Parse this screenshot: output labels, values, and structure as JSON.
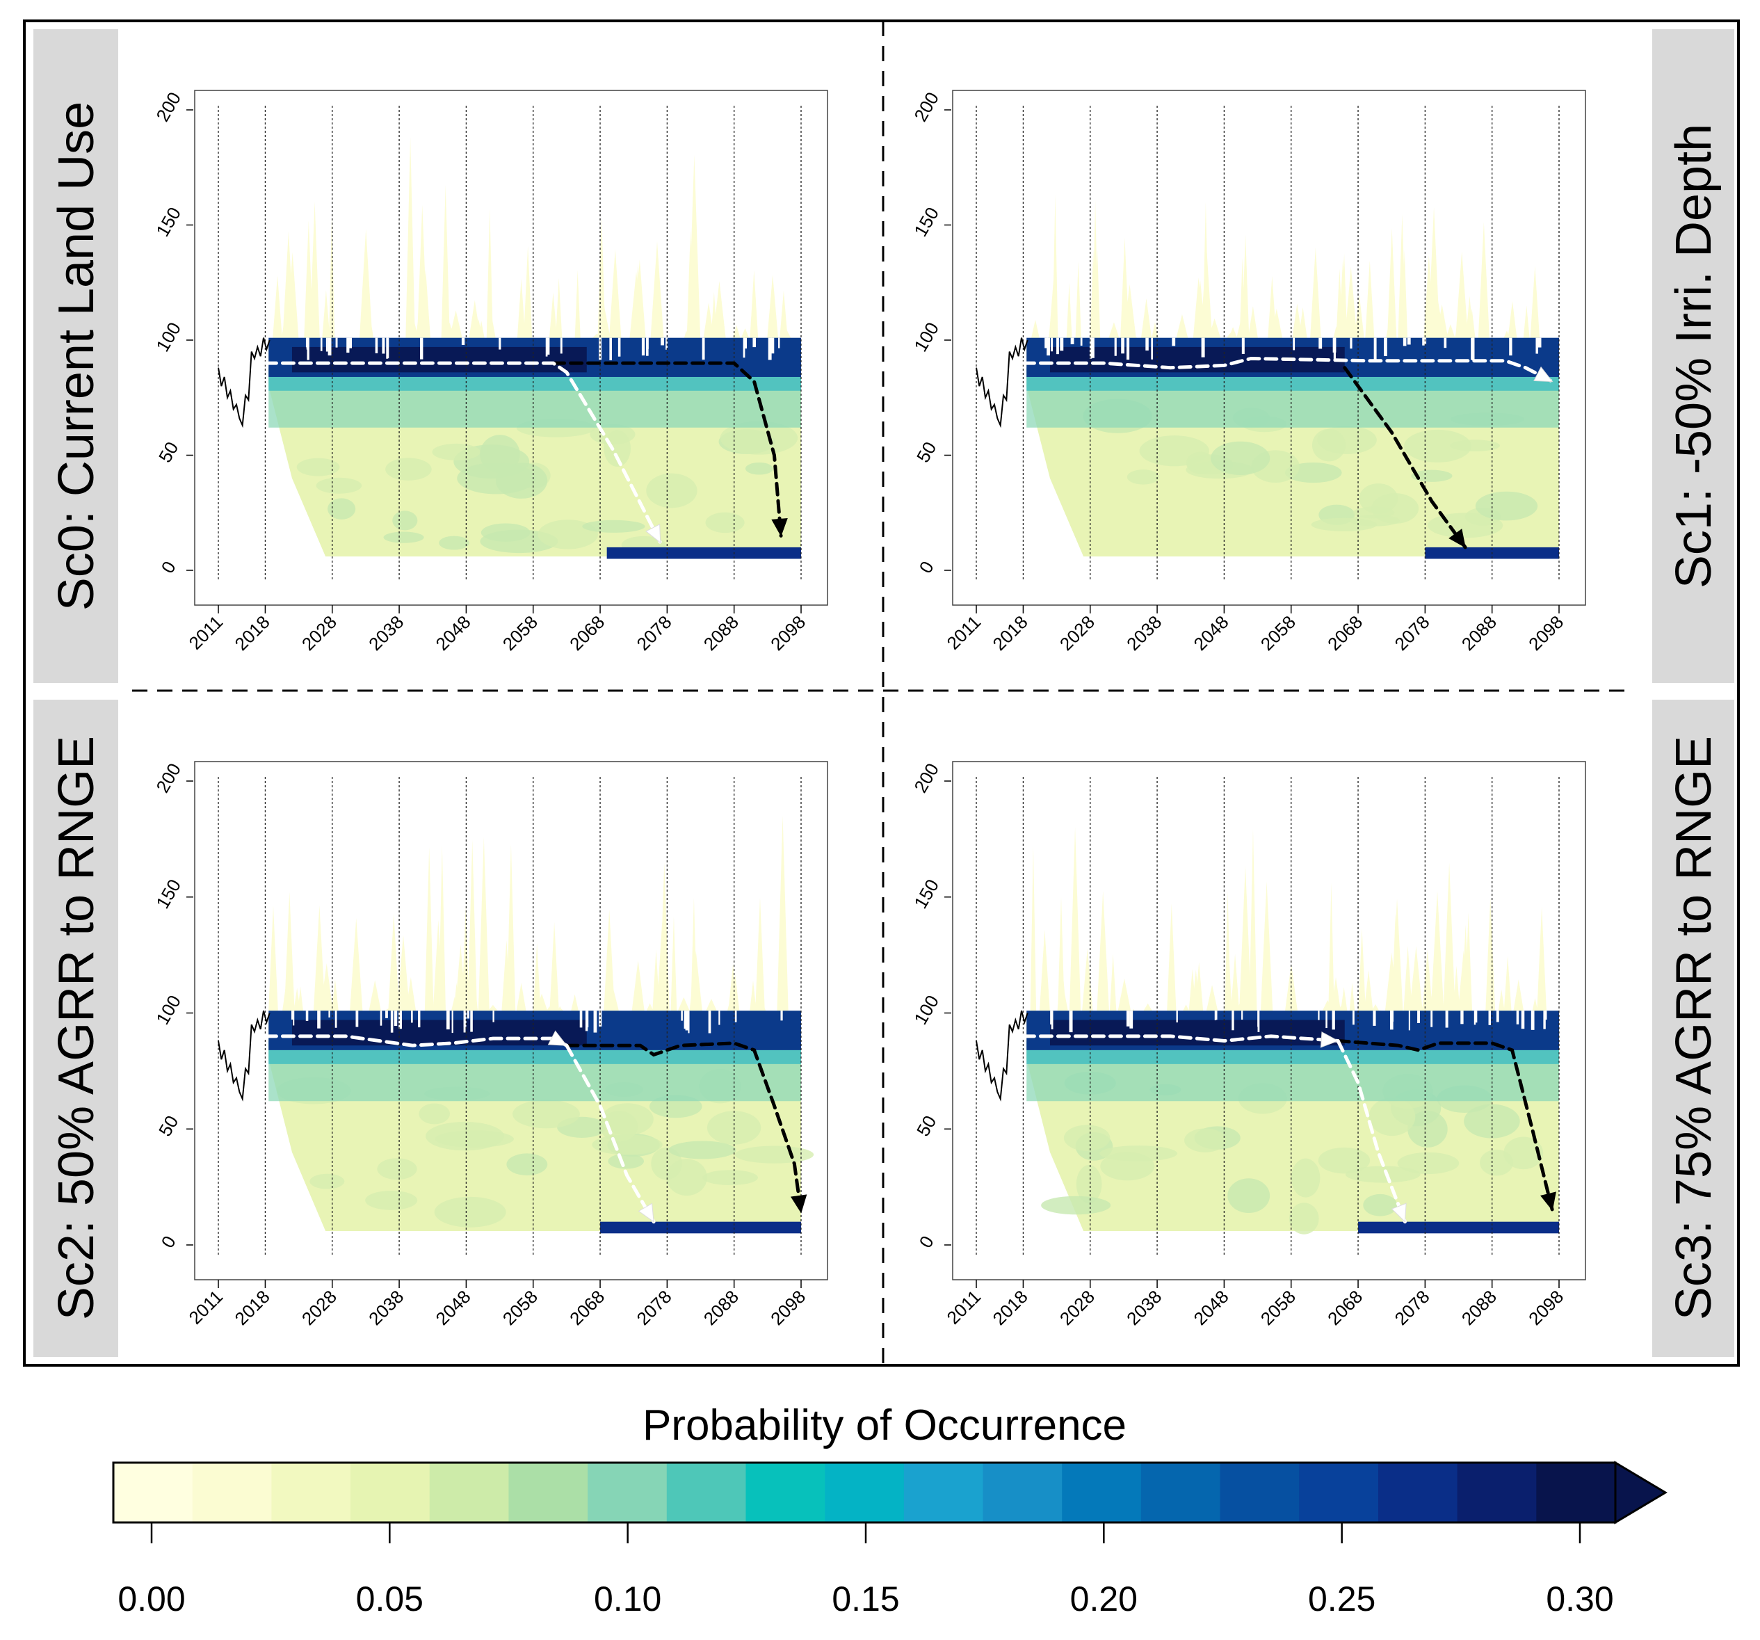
{
  "chart_data": {
    "type": "heatmap",
    "description_scope": "Fan-chart heatmaps of probability of occurrence over time for four land-use scenarios",
    "x_ticks": [
      "2011",
      "2018",
      "2028",
      "2038",
      "2048",
      "2058",
      "2068",
      "2078",
      "2088",
      "2098"
    ],
    "x_tick_values": [
      2011,
      2018,
      2028,
      2038,
      2048,
      2058,
      2068,
      2078,
      2088,
      2098
    ],
    "xlim": [
      2011,
      2098
    ],
    "y_ticks": [
      "0",
      "50",
      "100",
      "150",
      "200"
    ],
    "y_tick_values": [
      0,
      50,
      100,
      150,
      200
    ],
    "ylim": [
      0,
      200
    ],
    "panels": [
      {
        "label": "Sc0: Current Land Use",
        "white_path": [
          [
            2018,
            90
          ],
          [
            2030,
            90
          ],
          [
            2050,
            90
          ],
          [
            2061,
            90
          ],
          [
            2063,
            86
          ],
          [
            2070,
            52
          ],
          [
            2077,
            12
          ]
        ],
        "black_path": [
          [
            2061,
            90
          ],
          [
            2080,
            90
          ],
          [
            2088,
            90
          ],
          [
            2091,
            82
          ],
          [
            2094,
            50
          ],
          [
            2095,
            15
          ]
        ],
        "band_level": 90,
        "low_band_start": 2069
      },
      {
        "label": "Sc1: -50% Irri. Depth",
        "white_path": [
          [
            2018,
            90
          ],
          [
            2030,
            90
          ],
          [
            2040,
            88
          ],
          [
            2048,
            89
          ],
          [
            2052,
            92
          ],
          [
            2070,
            91
          ],
          [
            2090,
            91
          ],
          [
            2093,
            88
          ],
          [
            2097,
            82
          ]
        ],
        "black_path": [
          [
            2066,
            88
          ],
          [
            2073,
            60
          ],
          [
            2079,
            30
          ],
          [
            2084,
            10
          ]
        ],
        "band_level": 90,
        "low_band_start": 2078
      },
      {
        "label": "Sc2: 50% AGRR to RNGE",
        "white_path": [
          [
            2018,
            90
          ],
          [
            2030,
            90
          ],
          [
            2040,
            86
          ],
          [
            2046,
            87
          ],
          [
            2052,
            89
          ],
          [
            2061,
            89
          ],
          [
            2063,
            86
          ]
        ],
        "white_branch": [
          [
            2063,
            86
          ],
          [
            2068,
            60
          ],
          [
            2072,
            30
          ],
          [
            2076,
            10
          ]
        ],
        "black_path": [
          [
            2063,
            86
          ],
          [
            2074,
            86
          ],
          [
            2076,
            82
          ],
          [
            2080,
            86
          ],
          [
            2088,
            87
          ],
          [
            2091,
            84
          ],
          [
            2094,
            60
          ],
          [
            2097,
            35
          ],
          [
            2098,
            14
          ]
        ],
        "band_level": 90,
        "low_band_start": 2068
      },
      {
        "label": "Sc3: 75% AGRR to RNGE",
        "white_path": [
          [
            2018,
            90
          ],
          [
            2030,
            90
          ],
          [
            2040,
            90
          ],
          [
            2048,
            88
          ],
          [
            2055,
            90
          ],
          [
            2065,
            88
          ]
        ],
        "white_branch": [
          [
            2065,
            88
          ],
          [
            2068,
            70
          ],
          [
            2071,
            40
          ],
          [
            2075,
            10
          ]
        ],
        "black_path": [
          [
            2065,
            88
          ],
          [
            2074,
            86
          ],
          [
            2077,
            84
          ],
          [
            2080,
            87
          ],
          [
            2088,
            87
          ],
          [
            2091,
            84
          ],
          [
            2094,
            50
          ],
          [
            2097,
            15
          ]
        ],
        "band_level": 90,
        "low_band_start": 2068
      }
    ],
    "colorbar": {
      "title": "Probability of Occurrence",
      "ticks": [
        "0.00",
        "0.05",
        "0.10",
        "0.15",
        "0.20",
        "0.25",
        "0.30"
      ],
      "tick_values": [
        0,
        0.05,
        0.1,
        0.15,
        0.2,
        0.25,
        0.3
      ],
      "range": [
        0,
        0.3
      ],
      "extend": "max",
      "colors": [
        "#ffffe0",
        "#fbfcd2",
        "#f2f9c0",
        "#e6f4b2",
        "#cdeba9",
        "#abdfa7",
        "#86d5b6",
        "#4ec7b8",
        "#07c1bb",
        "#04b3c5",
        "#1aa2cf",
        "#178fc7",
        "#0479ba",
        "#0566ae",
        "#0650a1",
        "#08419b",
        "#0a2e88",
        "#0a1f6d",
        "#08144c"
      ]
    }
  }
}
